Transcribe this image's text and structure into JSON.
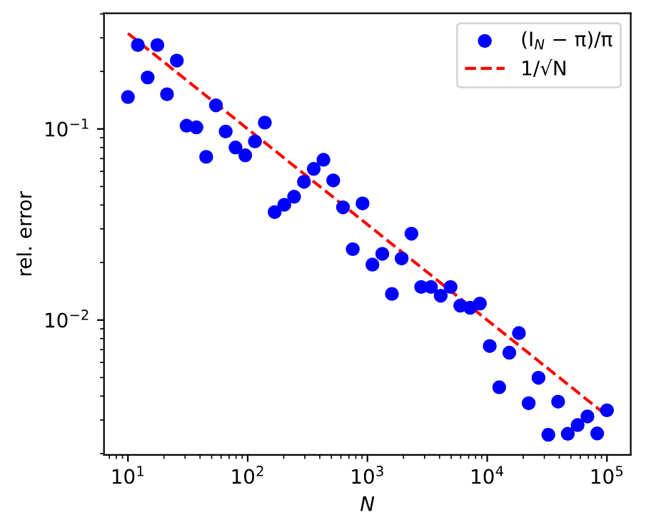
{
  "chart_data": {
    "type": "scatter",
    "xlabel": "N",
    "ylabel": "rel. error",
    "log": "xy",
    "xlim": [
      6.31,
      158000
    ],
    "ylim": [
      0.00197,
      0.403
    ],
    "xticks": [
      {
        "value": 10,
        "label": "10$^{1}$"
      },
      {
        "value": 100,
        "label": "10$^{2}$"
      },
      {
        "value": 1000,
        "label": "10$^{3}$"
      },
      {
        "value": 10000,
        "label": "10$^{4}$"
      },
      {
        "value": 100000,
        "label": "10$^{5}$"
      }
    ],
    "yticks": [
      {
        "value": 0.01,
        "label": "10$^{−2}$"
      },
      {
        "value": 0.1,
        "label": "10$^{−1}$"
      }
    ],
    "grid": false,
    "legend": "top right",
    "series": [
      {
        "name": "(I$_{N}$ − π)/π",
        "color": "#0000ff",
        "marker": "circle",
        "x": [
          10,
          12.1,
          14.6,
          17.6,
          21.2,
          25.6,
          30.9,
          37.3,
          45,
          54.3,
          65.5,
          79.1,
          95.4,
          115,
          139,
          168,
          202,
          244,
          295,
          356,
          429,
          518,
          625,
          754,
          910,
          1100,
          1330,
          1600,
          1930,
          2330,
          2810,
          3390,
          4090,
          4940,
          5960,
          7200,
          8690,
          10500,
          12600,
          15300,
          18400,
          22200,
          26800,
          32400,
          39100,
          47100,
          56900,
          68700,
          82900,
          100000
        ],
        "values": [
          0.147,
          0.275,
          0.186,
          0.275,
          0.152,
          0.228,
          0.104,
          0.102,
          0.0715,
          0.133,
          0.097,
          0.08,
          0.0728,
          0.086,
          0.108,
          0.0367,
          0.0401,
          0.0442,
          0.0529,
          0.0618,
          0.069,
          0.0538,
          0.0389,
          0.0235,
          0.0408,
          0.0195,
          0.0222,
          0.0137,
          0.021,
          0.0283,
          0.0149,
          0.0149,
          0.0134,
          0.0149,
          0.0119,
          0.0116,
          0.0122,
          0.00731,
          0.00445,
          0.00675,
          0.00855,
          0.00367,
          0.00499,
          0.00251,
          0.00374,
          0.00254,
          0.00282,
          0.00313,
          0.00255,
          0.00337
        ]
      },
      {
        "name": "1/√N",
        "type": "line",
        "color": "#ff0000",
        "line_style": "dashed",
        "marker": "none",
        "x": [
          10,
          100000
        ],
        "values": [
          0.3162,
          0.003162
        ]
      }
    ]
  }
}
